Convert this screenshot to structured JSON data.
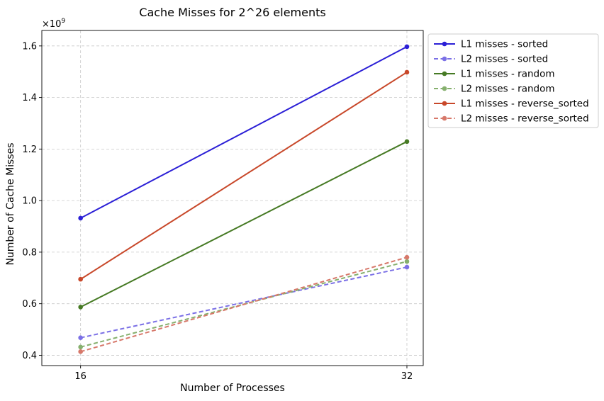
{
  "chart_data": {
    "type": "line",
    "title": "Cache Misses for 2^26 elements",
    "xlabel": "Number of Processes",
    "ylabel": "Number of Cache Misses",
    "y_multiplier_label": "×10",
    "y_multiplier_exponent": "9",
    "x": [
      16,
      32
    ],
    "x_ticks": [
      "16",
      "32"
    ],
    "y_ticks": [
      "0.4",
      "0.6",
      "0.8",
      "1.0",
      "1.2",
      "1.4",
      "1.6"
    ],
    "xlim": [
      14.1,
      32.8
    ],
    "ylim": [
      0.36,
      1.66
    ],
    "grid": true,
    "legend_position": "outside-top-right",
    "series": [
      {
        "name": "L1 misses - sorted",
        "values": [
          0.932,
          1.597
        ],
        "color": "#2b1fd6",
        "style": "solid"
      },
      {
        "name": "L2 misses - sorted",
        "values": [
          0.468,
          0.742
        ],
        "color": "#7b70e6",
        "style": "dashed"
      },
      {
        "name": "L1 misses - random",
        "values": [
          0.587,
          1.229
        ],
        "color": "#467a24",
        "style": "solid"
      },
      {
        "name": "L2 misses - random",
        "values": [
          0.432,
          0.764
        ],
        "color": "#86b06e",
        "style": "dashed"
      },
      {
        "name": "L1 misses - reverse_sorted",
        "values": [
          0.695,
          1.498
        ],
        "color": "#c8482a",
        "style": "solid"
      },
      {
        "name": "L2 misses - reverse_sorted",
        "values": [
          0.414,
          0.78
        ],
        "color": "#d7786a",
        "style": "dashed"
      }
    ]
  }
}
